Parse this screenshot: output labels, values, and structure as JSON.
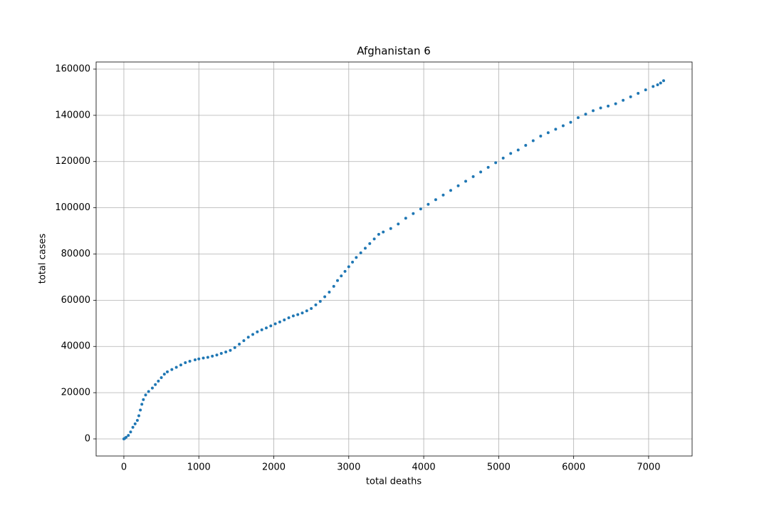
{
  "chart_data": {
    "type": "scatter",
    "title": "Afghanistan 6",
    "xlabel": "total deaths",
    "ylabel": "total cases",
    "color": "#1f77b4",
    "grid": true,
    "xlim": [
      -370,
      7580
    ],
    "ylim": [
      -7400,
      163080
    ],
    "xticks": [
      0,
      1000,
      2000,
      3000,
      4000,
      5000,
      6000,
      7000
    ],
    "yticks": [
      0,
      20000,
      40000,
      60000,
      80000,
      100000,
      120000,
      140000,
      160000
    ],
    "x": [
      0,
      10,
      30,
      60,
      90,
      120,
      150,
      180,
      200,
      220,
      240,
      260,
      290,
      330,
      380,
      420,
      460,
      500,
      540,
      580,
      640,
      700,
      760,
      820,
      880,
      950,
      1000,
      1060,
      1120,
      1180,
      1240,
      1300,
      1360,
      1420,
      1480,
      1540,
      1600,
      1660,
      1720,
      1780,
      1840,
      1900,
      1960,
      2020,
      2080,
      2140,
      2200,
      2260,
      2320,
      2380,
      2440,
      2500,
      2560,
      2620,
      2680,
      2740,
      2800,
      2850,
      2900,
      2950,
      3000,
      3050,
      3100,
      3160,
      3220,
      3280,
      3340,
      3400,
      3460,
      3560,
      3660,
      3760,
      3860,
      3960,
      4060,
      4160,
      4260,
      4360,
      4460,
      4560,
      4660,
      4760,
      4860,
      4960,
      5060,
      5160,
      5260,
      5360,
      5460,
      5560,
      5660,
      5760,
      5860,
      5960,
      6060,
      6160,
      6260,
      6360,
      6460,
      6560,
      6660,
      6760,
      6860,
      6960,
      7060,
      7120,
      7160,
      7200
    ],
    "values": [
      0,
      200,
      700,
      1500,
      3000,
      5000,
      6500,
      8000,
      10000,
      12500,
      15000,
      17000,
      19000,
      20500,
      22000,
      23500,
      25000,
      26500,
      28000,
      29000,
      30000,
      31000,
      32000,
      33000,
      33600,
      34200,
      34600,
      35000,
      35300,
      35800,
      36300,
      37000,
      37600,
      38300,
      39500,
      41000,
      42500,
      44000,
      45200,
      46300,
      47200,
      48000,
      48900,
      49800,
      50600,
      51500,
      52400,
      53200,
      53800,
      54500,
      55400,
      56400,
      58000,
      59500,
      61500,
      63500,
      66000,
      68500,
      70500,
      72500,
      74500,
      76500,
      78500,
      80500,
      82500,
      84500,
      86500,
      88500,
      89500,
      91000,
      93000,
      95500,
      97500,
      99500,
      101500,
      103500,
      105500,
      107500,
      109500,
      111500,
      113500,
      115500,
      117500,
      119500,
      121500,
      123500,
      125000,
      127000,
      129000,
      131000,
      132500,
      134000,
      135500,
      137000,
      139000,
      140500,
      142000,
      143200,
      144000,
      145000,
      146500,
      148000,
      149500,
      151000,
      152500,
      153200,
      154000,
      155000
    ]
  }
}
